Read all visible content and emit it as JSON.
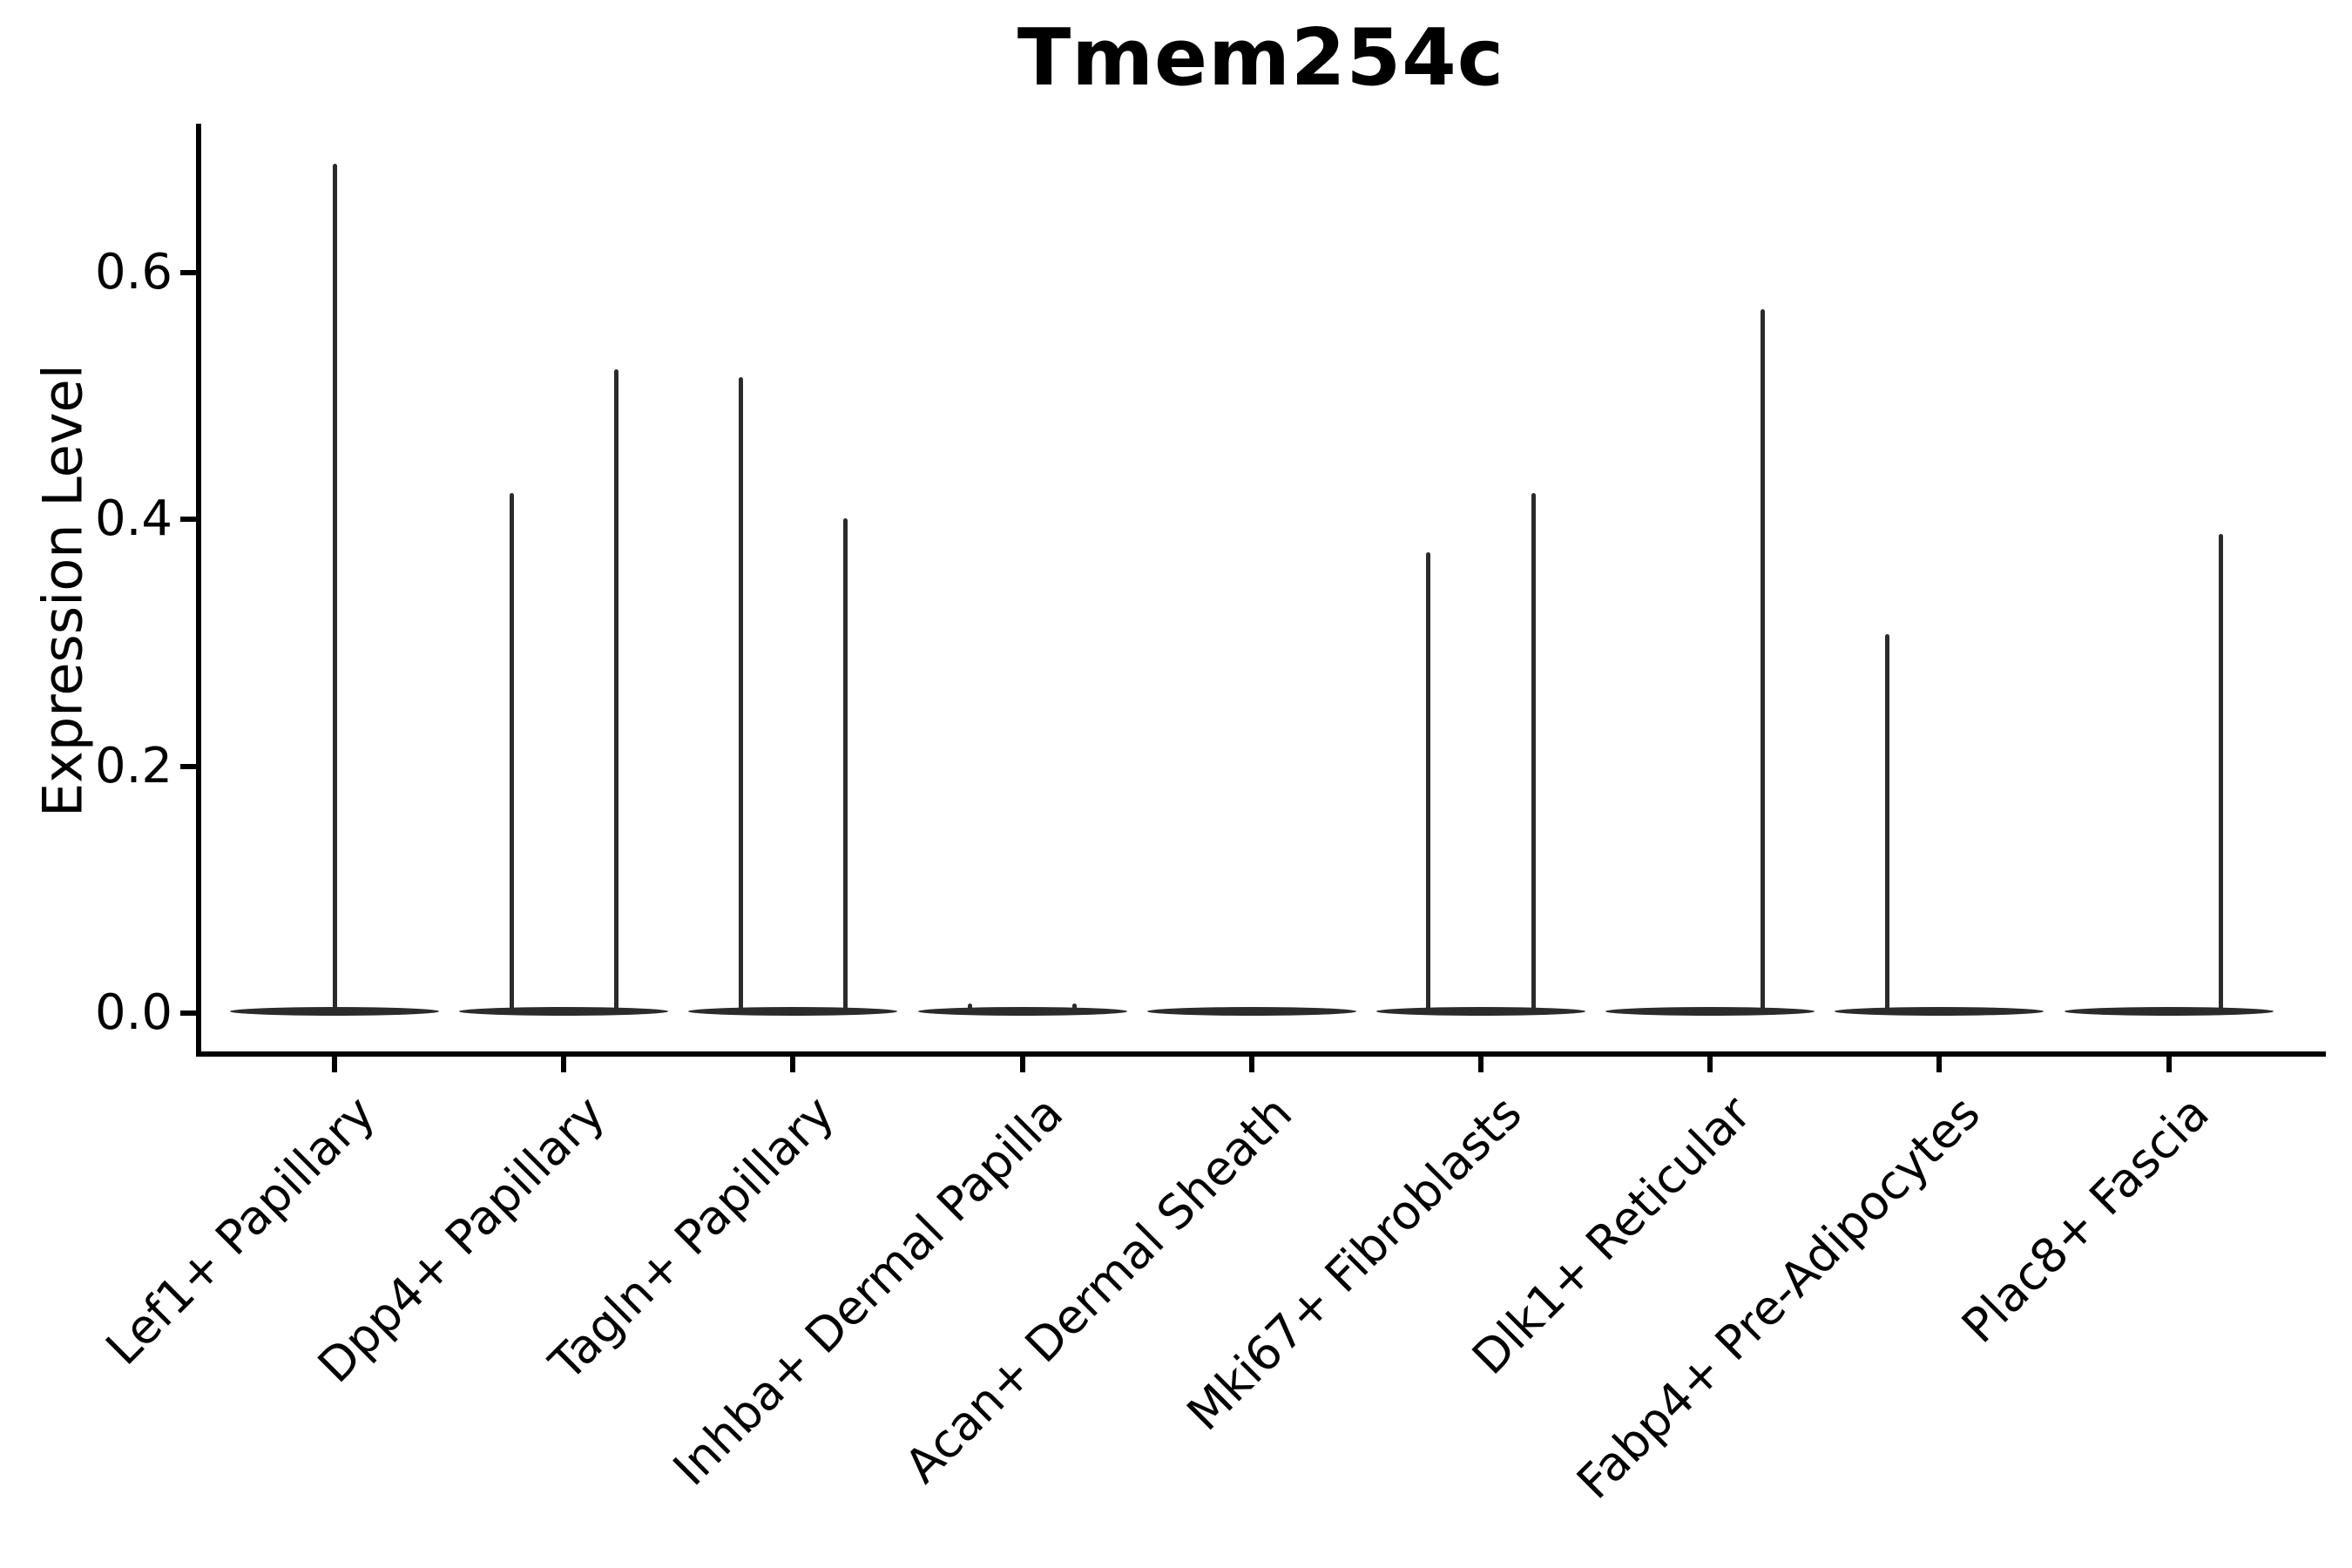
{
  "title": "Tmem254c",
  "y_axis": {
    "label": "Expression Level",
    "tick_labels": [
      "0.0",
      "0.2",
      "0.4",
      "0.6"
    ]
  },
  "x_axis": {
    "categories": [
      "Lef1+ Papillary",
      "Dpp4+ Papillary",
      "Tagln+ Papillary",
      "Inhba+ Dermal Papilla",
      "Acan+ Dermal Sheath",
      "Mki67+ Fibroblasts",
      "Dlk1+ Reticular",
      "Fabp4+ Pre-Adipocytes",
      "Plac8+ Fascia"
    ]
  },
  "chart_data": {
    "type": "violin",
    "title": "Tmem254c",
    "xlabel": "",
    "ylabel": "Expression Level",
    "ylim": [
      -0.034,
      0.722
    ],
    "yticks": [
      0.0,
      0.2,
      0.4,
      0.6
    ],
    "grid": false,
    "legend": "none",
    "violin_color": "#2b2b2b",
    "axis_color": "#000000",
    "description": "Single-gene violin plot; every population is concentrated at expression 0 (flat body) with thin spikes rising to the maximum expression of rare positive cells. Spike offset is the horizontal position of each spike as a fraction of one category slot relative to the category center; max is the expression value at the top of the spike.",
    "categories": [
      "Lef1+ Papillary",
      "Dpp4+ Papillary",
      "Tagln+ Papillary",
      "Inhba+ Dermal Papilla",
      "Acan+ Dermal Sheath",
      "Mki67+ Fibroblasts",
      "Dlk1+ Reticular",
      "Fabp4+ Pre-Adipocytes",
      "Plac8+ Fascia"
    ],
    "violins": [
      {
        "category": "Lef1+ Papillary",
        "base_value": 0,
        "spikes": [
          {
            "offset": 0,
            "max": 0.688
          }
        ]
      },
      {
        "category": "Dpp4+ Papillary",
        "base_value": 0,
        "spikes": [
          {
            "offset": -0.228,
            "max": 0.421
          },
          {
            "offset": 0.228,
            "max": 0.521
          }
        ]
      },
      {
        "category": "Tagln+ Papillary",
        "base_value": 0,
        "spikes": [
          {
            "offset": -0.228,
            "max": 0.515
          },
          {
            "offset": 0.228,
            "max": 0.401
          }
        ]
      },
      {
        "category": "Inhba+ Dermal Papilla",
        "base_value": 0,
        "spikes": [
          {
            "offset": -0.228,
            "max": 0.008
          },
          {
            "offset": 0.228,
            "max": 0.008
          }
        ]
      },
      {
        "category": "Acan+ Dermal Sheath",
        "base_value": 0,
        "spikes": []
      },
      {
        "category": "Mki67+ Fibroblasts",
        "base_value": 0,
        "spikes": [
          {
            "offset": -0.228,
            "max": 0.373
          },
          {
            "offset": 0.228,
            "max": 0.421
          }
        ]
      },
      {
        "category": "Dlk1+ Reticular",
        "base_value": 0,
        "spikes": [
          {
            "offset": 0.228,
            "max": 0.57
          }
        ]
      },
      {
        "category": "Fabp4+ Pre-Adipocytes",
        "base_value": 0,
        "spikes": [
          {
            "offset": -0.228,
            "max": 0.307
          }
        ]
      },
      {
        "category": "Plac8+ Fascia",
        "base_value": 0,
        "spikes": [
          {
            "offset": 0.228,
            "max": 0.388
          }
        ]
      }
    ]
  }
}
